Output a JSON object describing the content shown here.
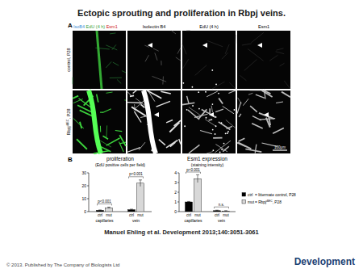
{
  "title": "Ectopic sprouting and proliferation in Rbpj veins.",
  "panel_a": {
    "letter": "A",
    "merge_header": [
      {
        "text": "IsoB4",
        "color": "#3a8fd8"
      },
      {
        "text": "EdU (4 h)",
        "color": "#3aa03a"
      },
      {
        "text": "Esm1",
        "color": "#d02020"
      }
    ],
    "headers": [
      "Isolectin B4",
      "EdU (4 h)",
      "Esm1"
    ],
    "rows": [
      {
        "text": "control, P28"
      },
      {
        "text": "Rbpj",
        "sup": "iΔEC",
        "suffix": ", P28"
      }
    ],
    "scale_bar": "100μm"
  },
  "panel_b": {
    "letter": "B"
  },
  "chart_data": [
    {
      "type": "bar",
      "title": "proliferation",
      "subtitle": "(EdU positive cells per field)",
      "categories": [
        "capillaries",
        "vein"
      ],
      "series": [
        {
          "name": "ctrl",
          "color": "#000000",
          "values": [
            1,
            1.5
          ],
          "errors": [
            0.3,
            0.4
          ]
        },
        {
          "name": "mut",
          "color": "#d8d8d8",
          "values": [
            3,
            22
          ],
          "errors": [
            0.5,
            2.5
          ]
        }
      ],
      "ylim": [
        0,
        30
      ],
      "yticks": [
        0,
        10,
        20,
        30
      ],
      "annotations": [
        {
          "text": "p<0.001",
          "category": "capillaries"
        },
        {
          "text": "p<0.001",
          "category": "vein"
        }
      ]
    },
    {
      "type": "bar",
      "title": "Esm1 expression",
      "subtitle": "(staining intensity)",
      "categories": [
        "capillaries",
        "vein"
      ],
      "series": [
        {
          "name": "ctrl",
          "color": "#000000",
          "values": [
            1,
            0.1
          ],
          "errors": [
            0.05,
            0.05
          ]
        },
        {
          "name": "mut",
          "color": "#d8d8d8",
          "values": [
            3.4,
            0.05
          ],
          "errors": [
            0.4,
            0.05
          ]
        }
      ],
      "ylim": [
        0,
        4
      ],
      "yticks": [
        0,
        1,
        2,
        3,
        4
      ],
      "annotations": [
        {
          "text": "p<0.001",
          "category": "capillaries"
        },
        {
          "text": "n.s.",
          "category": "vein"
        }
      ]
    }
  ],
  "legend_text": [
    {
      "text": "= littermate control, P28"
    },
    {
      "text": "= Rbpj",
      "sup": "iΔEC",
      "suffix": ", P28"
    }
  ],
  "citation": "Manuel Ehling et al. Development 2013;140:3051-3061",
  "copyright": "© 2013. Published by The Company of Biologists Ltd",
  "logo": "Development"
}
